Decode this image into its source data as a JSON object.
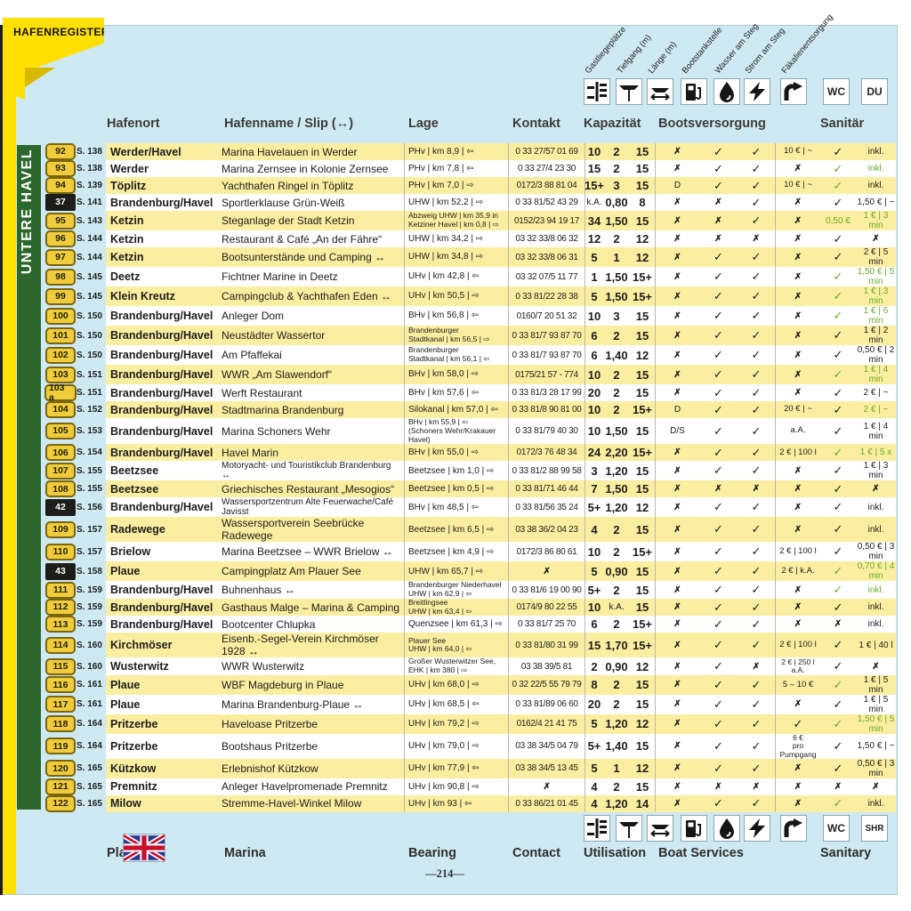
{
  "ribbon": "HAFENREGISTER",
  "region": "UNTERE HAVEL",
  "page_number": "—214—",
  "colors": {
    "panel_blue": "#cfe9f3",
    "ribbon_yellow": "#ffe000",
    "row_yellow": "#fbeea0",
    "green_bar": "#2c672c",
    "badge_yellow": "#f0cc3c",
    "green_text": "#68ab25"
  },
  "header": {
    "hafenort": "Hafenort",
    "hafenname": "Hafenname / Slip (↔)",
    "lage": "Lage",
    "kontakt": "Kontakt",
    "kapazitaet": "Kapazität",
    "bootsversorgung": "Bootsversorgung",
    "sanitaer": "Sanitär",
    "wc": "WC",
    "du": "DU"
  },
  "footer": {
    "place": "Place",
    "marina": "Marina",
    "bearing": "Bearing",
    "contact": "Contact",
    "utilisation": "Utilisation",
    "boat_services": "Boat Services",
    "sanitary": "Sanitary",
    "wc": "WC",
    "shr": "SHR"
  },
  "icon_columns": [
    {
      "label": "Gastliegeplätze"
    },
    {
      "label": "Tiefgang (m)"
    },
    {
      "label": "Länge (m)"
    },
    {
      "label": "Bootstankstelle"
    },
    {
      "label": "Wasser am Steg"
    },
    {
      "label": "Strom am Steg"
    },
    {
      "label": "Fäkalienentsorgung"
    }
  ],
  "rows": [
    {
      "num": "92",
      "black": false,
      "page": "S. 138",
      "place": "Werder/Havel",
      "name": "Marina Havelauen in Werder",
      "lage": "PHv | km 8,9 | ⇦",
      "kontakt": "0 33 27/57 01 69",
      "cap": [
        "10",
        "2",
        "15"
      ],
      "tank": "✗",
      "water": "✓",
      "power": "✓",
      "fecal": "10 € | ~",
      "wc": "✓",
      "wc_green": false,
      "du": "inkl.",
      "du_green": false
    },
    {
      "num": "93",
      "black": false,
      "page": "S. 138",
      "place": "Werder",
      "name": "Marina Zernsee in Kolonie Zernsee",
      "lage": "PHv | km 7,8 | ⇦",
      "kontakt": "0 33 27/4 23 30",
      "cap": [
        "15",
        "2",
        "15"
      ],
      "tank": "✗",
      "water": "✓",
      "power": "✓",
      "fecal": "✗",
      "wc": "✓",
      "wc_green": true,
      "du": "inkl.",
      "du_green": true
    },
    {
      "num": "94",
      "black": false,
      "page": "S. 139",
      "place": "Töplitz",
      "name": "Yachthafen Ringel in Töplitz",
      "lage": "PHv | km 7,0 | ⇨",
      "kontakt": "0172/3 88 81 04",
      "cap": [
        "15+",
        "3",
        "15"
      ],
      "tank": "D",
      "water": "✓",
      "power": "✓",
      "fecal": "10 € | ~",
      "wc": "✓",
      "wc_green": true,
      "du": "inkl.",
      "du_green": false
    },
    {
      "num": "37",
      "black": true,
      "page": "S. 141",
      "place": "Brandenburg/Havel",
      "name": "Sportlerklause Grün-Weiß",
      "lage": "UHW | km 52,2 | ⇨",
      "kontakt": "0 33 81/52 43 29",
      "cap": [
        "k.A.",
        "0,80",
        "8"
      ],
      "tank": "✗",
      "water": "✗",
      "power": "✓",
      "fecal": "✗",
      "wc": "✓",
      "wc_green": false,
      "du": "1,50 € | ~",
      "du_green": false
    },
    {
      "num": "95",
      "black": false,
      "page": "S. 143",
      "place": "Ketzin",
      "name": "Steganlage der Stadt Ketzin",
      "lage": "Abzweig UHW | km 35,9 in\nKetziner Havel | km 0,8 | ⇨",
      "kontakt": "0152/23 94 19 17",
      "cap": [
        "34",
        "1,50",
        "15"
      ],
      "tank": "✗",
      "water": "✗",
      "power": "✓",
      "fecal": "✗",
      "wc": "0,50 €",
      "wc_green": true,
      "du": "1 € | 3 min",
      "du_green": true
    },
    {
      "num": "96",
      "black": false,
      "page": "S. 144",
      "place": "Ketzin",
      "name": "Restaurant & Café „An der Fähre“",
      "lage": "UHW | km 34,2 | ⇨",
      "kontakt": "03 32 33/8 06 32",
      "cap": [
        "12",
        "2",
        "12"
      ],
      "tank": "✗",
      "water": "✗",
      "power": "✗",
      "fecal": "✗",
      "wc": "✓",
      "wc_green": false,
      "du": "✗",
      "du_green": false
    },
    {
      "num": "97",
      "black": false,
      "page": "S. 144",
      "place": "Ketzin",
      "name": "Bootsunterstände und Camping ↔",
      "lage": "UHW | km 34,8 | ⇨",
      "kontakt": "03 32 33/8 06 31",
      "cap": [
        "5",
        "1",
        "12"
      ],
      "tank": "✗",
      "water": "✓",
      "power": "✓",
      "fecal": "✗",
      "wc": "✓",
      "wc_green": false,
      "du": "2 € | 5 min",
      "du_green": false
    },
    {
      "num": "98",
      "black": false,
      "page": "S. 145",
      "place": "Deetz",
      "name": "Fichtner Marine in Deetz",
      "lage": "UHv | km 42,8 | ⇦",
      "kontakt": "03 32 07/5 11 77",
      "cap": [
        "1",
        "1,50",
        "15+"
      ],
      "tank": "✗",
      "water": "✓",
      "power": "✓",
      "fecal": "✗",
      "wc": "✓",
      "wc_green": true,
      "du": "1,50 € | 5 min",
      "du_green": true
    },
    {
      "num": "99",
      "black": false,
      "page": "S. 145",
      "place": "Klein Kreutz",
      "name": "Campingclub & Yachthafen Eden ↔",
      "lage": "UHv | km 50,5 | ⇨",
      "kontakt": "0 33 81/22 28 38",
      "cap": [
        "5",
        "1,50",
        "15+"
      ],
      "tank": "✗",
      "water": "✓",
      "power": "✓",
      "fecal": "✗",
      "wc": "✓",
      "wc_green": true,
      "du": "1 € | 3 min",
      "du_green": true
    },
    {
      "num": "100",
      "black": false,
      "page": "S. 150",
      "place": "Brandenburg/Havel",
      "name": "Anleger Dom",
      "lage": "BHv | km 56,8 | ⇦",
      "kontakt": "0160/7 20 51 32",
      "cap": [
        "10",
        "3",
        "15"
      ],
      "tank": "✗",
      "water": "✓",
      "power": "✓",
      "fecal": "✗",
      "wc": "✓",
      "wc_green": true,
      "du": "1 € | 6 min",
      "du_green": true
    },
    {
      "num": "101",
      "black": false,
      "page": "S. 150",
      "place": "Brandenburg/Havel",
      "name": "Neustädter Wassertor",
      "lage": "Brandenburger\nStadtkanal | km 56,5 | ⇨",
      "kontakt": "0 33 81/7 93 87 70",
      "cap": [
        "6",
        "2",
        "15"
      ],
      "tank": "✗",
      "water": "✓",
      "power": "✓",
      "fecal": "✗",
      "wc": "✓",
      "wc_green": false,
      "du": "1 € | 2 min",
      "du_green": false
    },
    {
      "num": "102",
      "black": false,
      "page": "S. 150",
      "place": "Brandenburg/Havel",
      "name": "Am Pfaffekai",
      "lage": "Brandenburger\nStadtkanal | km 56,1 | ⇦",
      "kontakt": "0 33 81/7 93 87 70",
      "cap": [
        "6",
        "1,40",
        "12"
      ],
      "tank": "✗",
      "water": "✓",
      "power": "✓",
      "fecal": "✗",
      "wc": "✓",
      "wc_green": false,
      "du": "0,50 € | 2 min",
      "du_green": false
    },
    {
      "num": "103",
      "black": false,
      "page": "S. 151",
      "place": "Brandenburg/Havel",
      "name": "WWR „Am Slawendorf“",
      "lage": "BHv | km 58,0 | ⇨",
      "kontakt": "0175/21 57 - 774",
      "cap": [
        "10",
        "2",
        "15"
      ],
      "tank": "✗",
      "water": "✓",
      "power": "✓",
      "fecal": "✗",
      "wc": "✓",
      "wc_green": true,
      "du": "1 € | 4 min",
      "du_green": true
    },
    {
      "num": "103 a",
      "black": false,
      "page": "S. 151",
      "place": "Brandenburg/Havel",
      "name": "Werft Restaurant",
      "lage": "BHv | km 57,6 | ⇦",
      "kontakt": "0 33 81/3 28 17 99",
      "cap": [
        "20",
        "2",
        "15"
      ],
      "tank": "✗",
      "water": "✓",
      "power": "✓",
      "fecal": "✗",
      "wc": "✓",
      "wc_green": false,
      "du": "2 € | ~",
      "du_green": false
    },
    {
      "num": "104",
      "black": false,
      "page": "S. 152",
      "place": "Brandenburg/Havel",
      "name": "Stadtmarina Brandenburg",
      "lage": "Silokanal | km 57,0 | ⇦",
      "kontakt": "0 33 81/8 90 81 00",
      "cap": [
        "10",
        "2",
        "15+"
      ],
      "tank": "D",
      "water": "✓",
      "power": "✓",
      "fecal": "20 € | ~",
      "wc": "✓",
      "wc_green": false,
      "du": "2 € | ~",
      "du_green": true
    },
    {
      "num": "105",
      "black": false,
      "page": "S. 153",
      "place": "Brandenburg/Havel",
      "name": "Marina Schoners Wehr",
      "lage": "BHv | km 55,9  | ⇦\n(Schoners Wehr/Krakauer Havel)",
      "kontakt": "0 33 81/79 40 30",
      "cap": [
        "10",
        "1,50",
        "15"
      ],
      "tank": "D/S",
      "water": "✓",
      "power": "✓",
      "fecal": "a.A.",
      "wc": "✓",
      "wc_green": false,
      "du": "1 € | 4 min",
      "du_green": false
    },
    {
      "num": "106",
      "black": false,
      "page": "S. 154",
      "place": "Brandenburg/Havel",
      "name": "Havel Marin",
      "lage": "BHv | km 55,0 | ⇨",
      "kontakt": "0172/3 76 48 34",
      "cap": [
        "24",
        "2,20",
        "15+"
      ],
      "tank": "✗",
      "water": "✓",
      "power": "✓",
      "fecal": "2 € | 100 l",
      "wc": "✓",
      "wc_green": true,
      "du": "1 € | 5 x",
      "du_green": true
    },
    {
      "num": "107",
      "black": false,
      "page": "S. 155",
      "place": "Beetzsee",
      "name": "Motoryacht- und Touristikclub Brandenburg ↔",
      "lage": "Beetzsee | km 1,0 | ⇨",
      "kontakt": "0 33 81/2 88 99 58",
      "cap": [
        "3",
        "1,20",
        "15"
      ],
      "tank": "✗",
      "water": "✓",
      "power": "✓",
      "fecal": "✗",
      "wc": "✓",
      "wc_green": false,
      "du": "1 € | 3 min",
      "du_green": false
    },
    {
      "num": "108",
      "black": false,
      "page": "S. 155",
      "place": "Beetzsee",
      "name": "Griechisches Restaurant „Mesogios“",
      "lage": "Beetzsee | km 0,5 | ⇨",
      "kontakt": "0 33 81/71 46 44",
      "cap": [
        "7",
        "1,50",
        "15"
      ],
      "tank": "✗",
      "water": "✗",
      "power": "✗",
      "fecal": "✗",
      "wc": "✓",
      "wc_green": false,
      "du": "✗",
      "du_green": false
    },
    {
      "num": "42",
      "black": true,
      "page": "S. 156",
      "place": "Brandenburg/Havel",
      "name": "Wassersportzentrum Alte Feuerwache/Café Javisst",
      "lage": "BHv | km 48,5 | ⇦",
      "kontakt": "0 33 81/56 35 24",
      "cap": [
        "5+",
        "1,20",
        "12"
      ],
      "tank": "✗",
      "water": "✓",
      "power": "✓",
      "fecal": "✗",
      "wc": "✓",
      "wc_green": false,
      "du": "inkl.",
      "du_green": false
    },
    {
      "num": "109",
      "black": false,
      "page": "S. 157",
      "place": "Radewege",
      "name": "Wassersportverein Seebrücke Radewege",
      "lage": "Beetzsee | km 6,5 | ⇨",
      "kontakt": "03 38 36/2 04 23",
      "cap": [
        "4",
        "2",
        "15"
      ],
      "tank": "✗",
      "water": "✓",
      "power": "✓",
      "fecal": "✗",
      "wc": "✓",
      "wc_green": false,
      "du": "inkl.",
      "du_green": false
    },
    {
      "num": "110",
      "black": false,
      "page": "S. 157",
      "place": "Brielow",
      "name": "Marina Beetzsee – WWR Brielow ↔",
      "lage": "Beetzsee | km 4,9 | ⇨",
      "kontakt": "0172/3 86 80 61",
      "cap": [
        "10",
        "2",
        "15+"
      ],
      "tank": "✗",
      "water": "✓",
      "power": "✓",
      "fecal": "2 € | 100 l",
      "wc": "✓",
      "wc_green": false,
      "du": "0,50 € | 3 min",
      "du_green": false
    },
    {
      "num": "43",
      "black": true,
      "page": "S. 158",
      "place": "Plaue",
      "name": "Campingplatz Am Plauer See",
      "lage": "UHW | km 65,7 | ⇨",
      "kontakt": "✗",
      "cap": [
        "5",
        "0,90",
        "15"
      ],
      "tank": "✗",
      "water": "✓",
      "power": "✓",
      "fecal": "2 € | k.A.",
      "wc": "✓",
      "wc_green": true,
      "du": "0,70 € | 4 min",
      "du_green": true
    },
    {
      "num": "111",
      "black": false,
      "page": "S. 159",
      "place": "Brandenburg/Havel",
      "name": "Buhnenhaus ↔",
      "lage": "Brandenburger Niederhavel\nUHW | km 62,9 | ⇦",
      "kontakt": "0 33 81/6 19 00 90",
      "cap": [
        "5+",
        "2",
        "15"
      ],
      "tank": "✗",
      "water": "✓",
      "power": "✓",
      "fecal": "✗",
      "wc": "✓",
      "wc_green": true,
      "du": "inkl.",
      "du_green": true
    },
    {
      "num": "112",
      "black": false,
      "page": "S. 159",
      "place": "Brandenburg/Havel",
      "name": "Gasthaus Malge – Marina & Camping",
      "lage": "Breitlingsee\nUHW | km 63,4 | ⇦",
      "kontakt": "0174/9 80 22 55",
      "cap": [
        "10",
        "k.A.",
        "15"
      ],
      "tank": "✗",
      "water": "✓",
      "power": "✓",
      "fecal": "✗",
      "wc": "✓",
      "wc_green": false,
      "du": "inkl.",
      "du_green": false
    },
    {
      "num": "113",
      "black": false,
      "page": "S. 159",
      "place": "Brandenburg/Havel",
      "name": "Bootcenter Chlupka",
      "lage": "Quenzsee | km 61,3 | ⇨",
      "kontakt": "0 33 81/7 25 70",
      "cap": [
        "6",
        "2",
        "15+"
      ],
      "tank": "✗",
      "water": "✓",
      "power": "✓",
      "fecal": "✗",
      "wc": "✗",
      "wc_green": false,
      "du": "inkl.",
      "du_green": false
    },
    {
      "num": "114",
      "black": false,
      "page": "S. 160",
      "place": "Kirchmöser",
      "name": "Eisenb.-Segel-Verein Kirchmöser 1928 ↔",
      "lage": "Plauer See\nUHW | km 64,0 | ⇦",
      "kontakt": "0 33 81/80 31 99",
      "cap": [
        "15",
        "1,70",
        "15+"
      ],
      "tank": "✗",
      "water": "✓",
      "power": "✓",
      "fecal": "2 € | 100 l",
      "wc": "✓",
      "wc_green": false,
      "du": "1 € | 40 l",
      "du_green": false
    },
    {
      "num": "115",
      "black": false,
      "page": "S. 160",
      "place": "Wusterwitz",
      "name": "WWR Wusterwitz",
      "lage": "Großer Wusterwitzer See,\nEHK | km 380 | ⇨",
      "kontakt": "03 38 39/5 81",
      "cap": [
        "2",
        "0,90",
        "12"
      ],
      "tank": "✗",
      "water": "✓",
      "power": "✗",
      "fecal": "2 € | 250 l\na.A.",
      "wc": "✓",
      "wc_green": false,
      "du": "✗",
      "du_green": false
    },
    {
      "num": "116",
      "black": false,
      "page": "S. 161",
      "place": "Plaue",
      "name": "WBF Magdeburg in Plaue",
      "lage": "UHv | km 68,0 | ⇨",
      "kontakt": "0 32 22/5 55 79 79",
      "cap": [
        "8",
        "2",
        "15"
      ],
      "tank": "✗",
      "water": "✓",
      "power": "✓",
      "fecal": "5 – 10 €",
      "wc": "✓",
      "wc_green": true,
      "du": "1 € | 5 min",
      "du_green": false
    },
    {
      "num": "117",
      "black": false,
      "page": "S. 161",
      "place": "Plaue",
      "name": "Marina Brandenburg-Plaue ↔",
      "lage": "UHv | km 68,5 | ⇦",
      "kontakt": "0 33 81/89 06 60",
      "cap": [
        "20",
        "2",
        "15"
      ],
      "tank": "✗",
      "water": "✓",
      "power": "✓",
      "fecal": "✗",
      "wc": "✓",
      "wc_green": false,
      "du": "1 € | 5 min",
      "du_green": false
    },
    {
      "num": "118",
      "black": false,
      "page": "S. 164",
      "place": "Pritzerbe",
      "name": "Haveloase Pritzerbe",
      "lage": "UHv | km 79,2 | ⇨",
      "kontakt": "0162/4 21 41 75",
      "cap": [
        "5",
        "1,20",
        "12"
      ],
      "tank": "✗",
      "water": "✓",
      "power": "✓",
      "fecal": "✓",
      "wc": "✓",
      "wc_green": true,
      "du": "1,50 € | 5 min",
      "du_green": true
    },
    {
      "num": "119",
      "black": false,
      "page": "S. 164",
      "place": "Pritzerbe",
      "name": "Bootshaus Pritzerbe",
      "lage": "UHv | km 79,0 | ⇨",
      "kontakt": "03 38 34/5 04 79",
      "cap": [
        "5+",
        "1,40",
        "15"
      ],
      "tank": "✗",
      "water": "✓",
      "power": "✓",
      "fecal": "6 €\npro Pumpgang",
      "wc": "✓",
      "wc_green": false,
      "du": "1,50 € | ~",
      "du_green": false
    },
    {
      "num": "120",
      "black": false,
      "page": "S. 165",
      "place": "Kützkow",
      "name": "Erlebnishof Kützkow",
      "lage": "UHv | km 77,9 | ⇦",
      "kontakt": "03 38 34/5 13 45",
      "cap": [
        "5",
        "1",
        "12"
      ],
      "tank": "✗",
      "water": "✓",
      "power": "✓",
      "fecal": "✗",
      "wc": "✓",
      "wc_green": false,
      "du": "0,50 € | 3 min",
      "du_green": false
    },
    {
      "num": "121",
      "black": false,
      "page": "S. 165",
      "place": "Premnitz",
      "name": "Anleger Havelpromenade Premnitz",
      "lage": "UHv | km 90,8 | ⇨",
      "kontakt": "✗",
      "cap": [
        "4",
        "2",
        "15"
      ],
      "tank": "✗",
      "water": "✗",
      "power": "✗",
      "fecal": "✗",
      "wc": "✗",
      "wc_green": false,
      "du": "✗",
      "du_green": false
    },
    {
      "num": "122",
      "black": false,
      "page": "S. 165",
      "place": "Milow",
      "name": "Stremme-Havel-Winkel Milow",
      "lage": "UHv | km 93 | ⇦",
      "kontakt": "0 33 86/21 01 45",
      "cap": [
        "4",
        "1,20",
        "14"
      ],
      "tank": "✗",
      "water": "✓",
      "power": "✓",
      "fecal": "✗",
      "wc": "✓",
      "wc_green": true,
      "du": "inkl.",
      "du_green": false
    }
  ]
}
